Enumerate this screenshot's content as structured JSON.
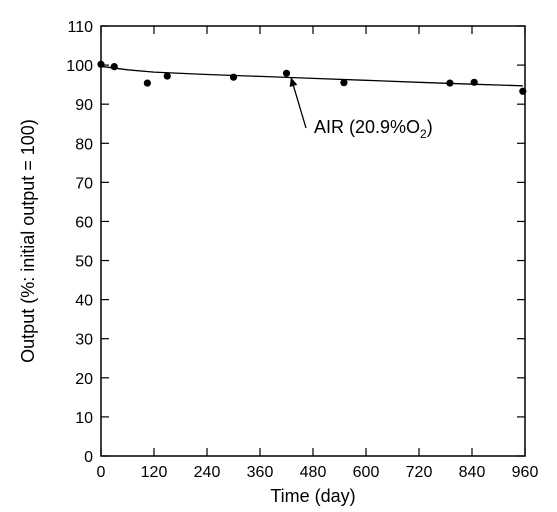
{
  "chart_data": {
    "type": "scatter",
    "xlabel": "Time (day)",
    "ylabel": "Output (%: initial output = 100)",
    "xlim": [
      0,
      960
    ],
    "ylim": [
      0,
      110
    ],
    "xticks": [
      0,
      120,
      240,
      360,
      480,
      600,
      720,
      840,
      960
    ],
    "yticks": [
      0,
      10,
      20,
      30,
      40,
      50,
      60,
      70,
      80,
      90,
      100,
      110
    ],
    "grid": false,
    "series": [
      {
        "points": [
          {
            "x": 0,
            "y": 100.2
          },
          {
            "x": 30,
            "y": 99.6
          },
          {
            "x": 105,
            "y": 95.4
          },
          {
            "x": 150,
            "y": 97.2
          },
          {
            "x": 300,
            "y": 96.9
          },
          {
            "x": 420,
            "y": 97.9
          },
          {
            "x": 550,
            "y": 95.5
          },
          {
            "x": 790,
            "y": 95.4
          },
          {
            "x": 845,
            "y": 95.6
          },
          {
            "x": 955,
            "y": 93.3
          }
        ],
        "color": "#000000"
      }
    ],
    "trendline": {
      "points": [
        {
          "x": 0,
          "y": 99.7
        },
        {
          "x": 60,
          "y": 98.8
        },
        {
          "x": 120,
          "y": 98.2
        },
        {
          "x": 240,
          "y": 97.6
        },
        {
          "x": 360,
          "y": 97.1
        },
        {
          "x": 480,
          "y": 96.6
        },
        {
          "x": 600,
          "y": 96.1
        },
        {
          "x": 720,
          "y": 95.6
        },
        {
          "x": 840,
          "y": 95.1
        },
        {
          "x": 955,
          "y": 94.7
        }
      ]
    },
    "annotation": {
      "prefix": "AIR (20.9%O",
      "subscript": "2",
      "suffix": ")",
      "arrow_to": {
        "x": 430,
        "y": 96.9
      }
    }
  }
}
